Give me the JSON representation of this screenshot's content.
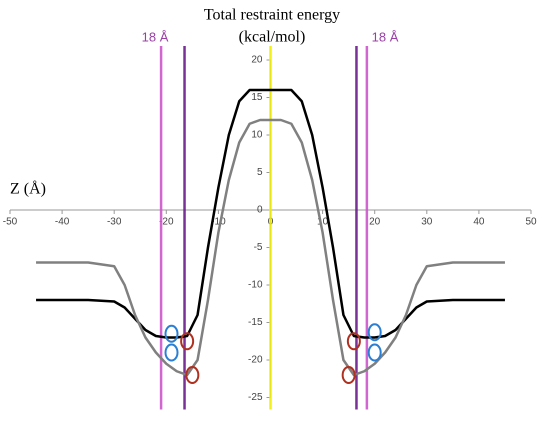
{
  "chart_data": {
    "type": "line",
    "title": "Total restraint energy",
    "subtitle": "(kcal/mol)",
    "x_label": "Z (Å)",
    "xlim": [
      -50,
      50
    ],
    "ylim": [
      -25,
      20
    ],
    "xticks": [
      -50,
      -40,
      -30,
      -20,
      -10,
      0,
      10,
      20,
      30,
      40,
      50
    ],
    "yticks": [
      20,
      15,
      10,
      5,
      0,
      -5,
      -10,
      -15,
      -20,
      -25
    ],
    "x": [
      -45,
      -40,
      -35,
      -30,
      -28,
      -26,
      -24,
      -22,
      -20,
      -18,
      -16,
      -14,
      -12,
      -10,
      -8,
      -6,
      -4,
      -2,
      0,
      2,
      4,
      6,
      8,
      10,
      12,
      14,
      16,
      18,
      20,
      22,
      24,
      26,
      28,
      30,
      35,
      40,
      45
    ],
    "series": [
      {
        "color": "#000000",
        "values": [
          -12,
          -12,
          -12,
          -12.2,
          -13,
          -14.5,
          -16,
          -16.8,
          -17,
          -17,
          -16.8,
          -14,
          -5,
          3,
          10,
          14.5,
          16,
          16,
          16,
          16,
          16,
          14.5,
          10,
          3,
          -5,
          -14,
          -16.8,
          -17,
          -17,
          -16.8,
          -16,
          -14.5,
          -13,
          -12.2,
          -12,
          -12,
          -12
        ]
      },
      {
        "color": "#808080",
        "values": [
          -7,
          -7,
          -7,
          -7.5,
          -10,
          -14,
          -17,
          -19,
          -20.5,
          -21.5,
          -22,
          -20,
          -12,
          -3,
          4,
          9,
          11.5,
          12,
          12,
          12,
          11.5,
          9,
          4,
          -3,
          -12,
          -20,
          -22,
          -21.5,
          -20.5,
          -19,
          -17,
          -14,
          -10,
          -7.5,
          -7,
          -7,
          -7
        ]
      }
    ],
    "vlines": [
      {
        "x": -21,
        "color": "#cc55cc"
      },
      {
        "x": -16.5,
        "color": "#6a1b8a"
      },
      {
        "x": 16.5,
        "color": "#6a1b8a"
      },
      {
        "x": 18.5,
        "color": "#cc55cc"
      },
      {
        "x": 0,
        "color": "#f0f000"
      }
    ],
    "annotations": [
      "18 Å",
      "18 Å"
    ],
    "markers": [
      {
        "x": -19,
        "y": -16.5,
        "color": "#2a7fd4"
      },
      {
        "x": -19,
        "y": -19,
        "color": "#2a7fd4"
      },
      {
        "x": -16,
        "y": -17.5,
        "color": "#b03020"
      },
      {
        "x": -15,
        "y": -22,
        "color": "#b03020"
      },
      {
        "x": 20,
        "y": -16.3,
        "color": "#2a7fd4"
      },
      {
        "x": 20,
        "y": -19,
        "color": "#2a7fd4"
      },
      {
        "x": 16,
        "y": -17.5,
        "color": "#b03020"
      },
      {
        "x": 15,
        "y": -22,
        "color": "#b03020"
      }
    ]
  }
}
